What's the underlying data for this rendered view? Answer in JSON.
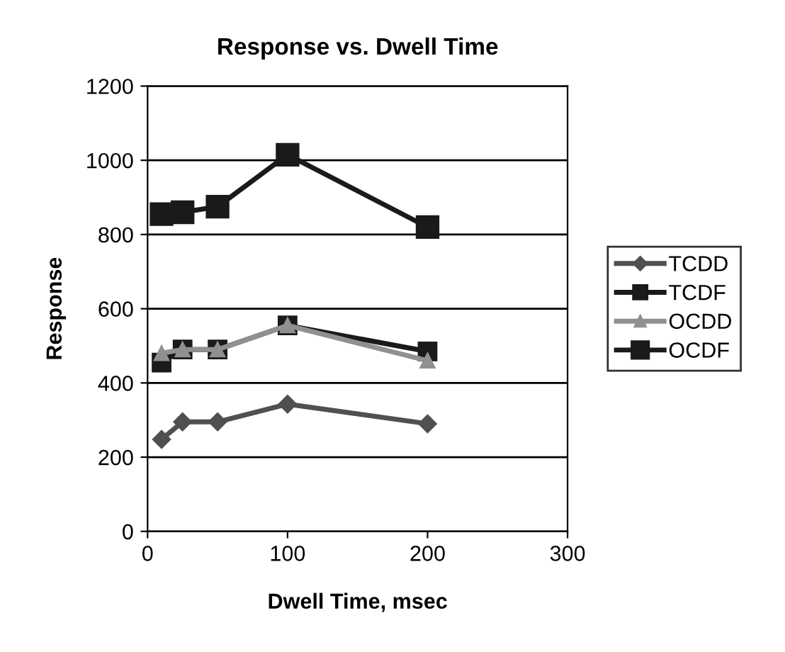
{
  "chart_data": {
    "type": "line",
    "title": "Response vs. Dwell Time",
    "xlabel": "Dwell Time, msec",
    "ylabel": "Response",
    "x": [
      10,
      25,
      50,
      100,
      200
    ],
    "series": [
      {
        "name": "TCDD",
        "color": "#505050",
        "marker": "diamond",
        "values": [
          248,
          295,
          295,
          343,
          290
        ]
      },
      {
        "name": "TCDF",
        "color": "#1a1a1a",
        "marker": "square",
        "values": [
          455,
          490,
          490,
          555,
          485
        ]
      },
      {
        "name": "OCDD",
        "color": "#909090",
        "marker": "triangle",
        "values": [
          480,
          490,
          490,
          555,
          460
        ]
      },
      {
        "name": "OCDF",
        "color": "#1a1a1a",
        "marker": "square",
        "values": [
          855,
          860,
          875,
          1015,
          820
        ]
      }
    ],
    "xlim": [
      0,
      300
    ],
    "xticks": [
      0,
      100,
      200,
      300
    ],
    "ylim": [
      0,
      1200
    ],
    "yticks": [
      0,
      200,
      400,
      600,
      800,
      1000,
      1200
    ],
    "grid": "y",
    "legend": "right",
    "line_style": "solid"
  }
}
